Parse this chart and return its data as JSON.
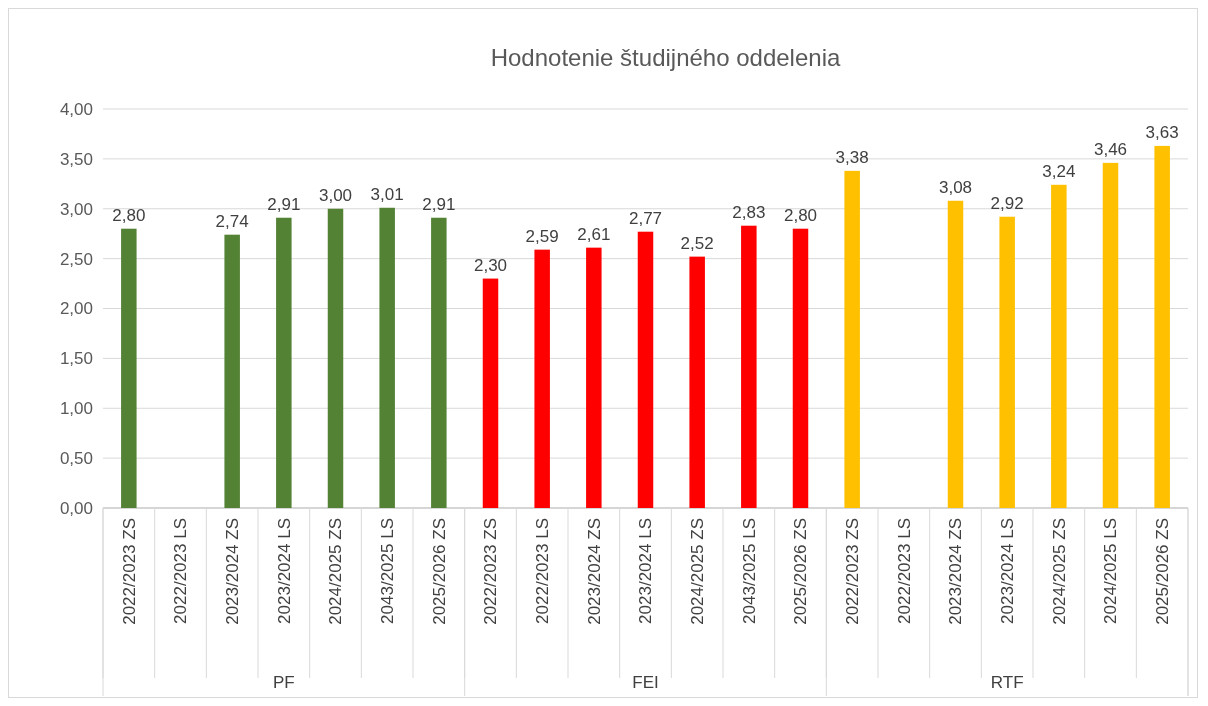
{
  "chart_data": {
    "type": "bar",
    "title": "Hodnotenie študijného oddelenia",
    "categories": [
      "2022/2023 ZS",
      "2022/2023 LS",
      "2023/2024 ZS",
      "2023/2024 LS",
      "2024/2025 ZS",
      "2043/2025 LS",
      "2025/2026 ZS",
      "2022/2023 ZS",
      "2022/2023 LS",
      "2023/2024 ZS",
      "2023/2024 LS",
      "2024/2025 ZS",
      "2043/2025 LS",
      "2025/2026 ZS",
      "2022/2023 ZS",
      "2022/2023 LS",
      "2023/2024 ZS",
      "2023/2024 LS",
      "2024/2025 ZS",
      "2024/2025 LS",
      "2025/2026 ZS"
    ],
    "series": [
      {
        "color": "#548235",
        "values": [
          2.8,
          null,
          2.74,
          2.91,
          3.0,
          3.01,
          2.91,
          null,
          null,
          null,
          null,
          null,
          null,
          null,
          null,
          null,
          null,
          null,
          null,
          null,
          null
        ],
        "value_labels": [
          "2,80",
          null,
          "2,74",
          "2,91",
          "3,00",
          "3,01",
          "2,91",
          null,
          null,
          null,
          null,
          null,
          null,
          null,
          null,
          null,
          null,
          null,
          null,
          null,
          null
        ]
      },
      {
        "color": "#ff0000",
        "values": [
          null,
          null,
          null,
          null,
          null,
          null,
          null,
          2.3,
          2.59,
          2.61,
          2.77,
          2.52,
          2.83,
          2.8,
          null,
          null,
          null,
          null,
          null,
          null,
          null
        ],
        "value_labels": [
          null,
          null,
          null,
          null,
          null,
          null,
          null,
          "2,30",
          "2,59",
          "2,61",
          "2,77",
          "2,52",
          "2,83",
          "2,80",
          null,
          null,
          null,
          null,
          null,
          null,
          null
        ]
      },
      {
        "color": "#ffc000",
        "values": [
          null,
          null,
          null,
          null,
          null,
          null,
          null,
          null,
          null,
          null,
          null,
          null,
          null,
          null,
          3.38,
          null,
          3.08,
          2.92,
          3.24,
          3.46,
          3.63
        ],
        "value_labels": [
          null,
          null,
          null,
          null,
          null,
          null,
          null,
          null,
          null,
          null,
          null,
          null,
          null,
          null,
          "3,38",
          null,
          "3,08",
          "2,92",
          "3,24",
          "3,46",
          "3,63"
        ]
      }
    ],
    "annotations": [
      "PF",
      "FEI",
      "RTF"
    ],
    "ylim": [
      0,
      4
    ],
    "yticks": [
      {
        "value": 0,
        "label": "0,00"
      },
      {
        "value": 0.5,
        "label": "0,50"
      },
      {
        "value": 1,
        "label": "1,00"
      },
      {
        "value": 1.5,
        "label": "1,50"
      },
      {
        "value": 2,
        "label": "2,00"
      },
      {
        "value": 2.5,
        "label": "2,50"
      },
      {
        "value": 3,
        "label": "3,00"
      },
      {
        "value": 3.5,
        "label": "3,50"
      },
      {
        "value": 4,
        "label": "4,00"
      }
    ],
    "grid": "y"
  }
}
